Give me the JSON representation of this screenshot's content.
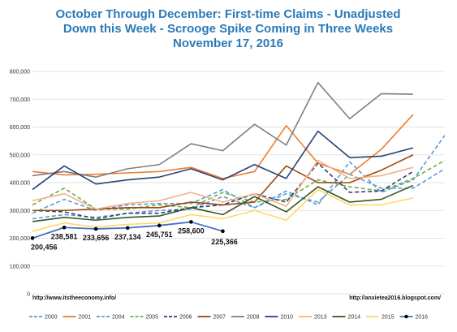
{
  "chart_data": {
    "type": "line",
    "title_lines": [
      "October Through December: First-time Claims - Unadjusted",
      "Down this Week - Scrooge Spike Coming in Three Weeks",
      "November 17, 2016"
    ],
    "xlabel": "",
    "ylabel": "",
    "ylim": [
      0,
      800000
    ],
    "yticks": [
      0,
      100000,
      200000,
      300000,
      400000,
      500000,
      600000,
      700000,
      800000
    ],
    "ytick_labels": [
      "0",
      "100,000",
      "200,000",
      "300,000",
      "400,000",
      "500,000",
      "600,000",
      "700,000",
      "800,000"
    ],
    "xlim": [
      0,
      13
    ],
    "grid": true,
    "legend_position": "bottom",
    "source_left": "http://www.itstheeconomy.info/",
    "source_right": "http://anxietea2016.blogspot.com/",
    "data_labels": [
      "200,456",
      "238,581",
      "233,656",
      "237,134",
      "245,751",
      "258,600",
      "225,366"
    ],
    "series": [
      {
        "name": "2000",
        "color": "#5b9bd5",
        "dash": "dashed",
        "values": [
          270000,
          285000,
          275000,
          290000,
          300000,
          305000,
          350000,
          310000,
          370000,
          320000,
          475000,
          365000,
          410000,
          570000
        ]
      },
      {
        "name": "2001",
        "color": "#ed7d31",
        "dash": "solid",
        "values": [
          440000,
          428000,
          430000,
          435000,
          440000,
          455000,
          415000,
          440000,
          605000,
          470000,
          430000,
          520000,
          645000
        ]
      },
      {
        "name": "2004",
        "color": "#5b9bd5",
        "dash": "dashed",
        "values": [
          290000,
          340000,
          300000,
          320000,
          325000,
          325000,
          375000,
          310000,
          360000,
          330000,
          430000,
          380000,
          380000,
          450000
        ]
      },
      {
        "name": "2005",
        "color": "#70ad47",
        "dash": "dashed",
        "values": [
          320000,
          380000,
          305000,
          305000,
          320000,
          310000,
          365000,
          330000,
          340000,
          410000,
          385000,
          370000,
          415000,
          480000
        ]
      },
      {
        "name": "2006",
        "color": "#264478",
        "dash": "dashed",
        "values": [
          300000,
          295000,
          270000,
          290000,
          290000,
          310000,
          320000,
          360000,
          330000,
          470000,
          365000,
          370000,
          440000
        ]
      },
      {
        "name": "2007",
        "color": "#9e480e",
        "dash": "solid",
        "values": [
          300000,
          300000,
          305000,
          310000,
          310000,
          330000,
          320000,
          330000,
          460000,
          400000,
          400000,
          445000,
          500000
        ]
      },
      {
        "name": "2008",
        "color": "#7f7f7f",
        "dash": "solid",
        "values": [
          425000,
          440000,
          420000,
          450000,
          465000,
          540000,
          515000,
          610000,
          535000,
          760000,
          630000,
          720000,
          718000
        ]
      },
      {
        "name": "2010",
        "color": "#264478",
        "dash": "solid",
        "values": [
          375000,
          460000,
          395000,
          410000,
          420000,
          450000,
          410000,
          465000,
          415000,
          585000,
          490000,
          495000,
          525000
        ]
      },
      {
        "name": "2013",
        "color": "#f4b183",
        "dash": "solid",
        "values": [
          335000,
          360000,
          305000,
          325000,
          335000,
          365000,
          330000,
          360000,
          315000,
          480000,
          415000,
          425000,
          455000
        ]
      },
      {
        "name": "2014",
        "color": "#375623",
        "dash": "solid",
        "values": [
          260000,
          275000,
          265000,
          275000,
          280000,
          310000,
          285000,
          350000,
          295000,
          385000,
          330000,
          340000,
          390000
        ]
      },
      {
        "name": "2015",
        "color": "#ffd966",
        "dash": "solid",
        "values": [
          225000,
          255000,
          240000,
          250000,
          255000,
          285000,
          270000,
          300000,
          265000,
          375000,
          320000,
          320000,
          345000
        ]
      },
      {
        "name": "2016",
        "color": "#4472c4",
        "dash": "solid",
        "marker": true,
        "values": [
          200456,
          238581,
          233656,
          237134,
          245751,
          258600,
          225366
        ]
      }
    ]
  }
}
